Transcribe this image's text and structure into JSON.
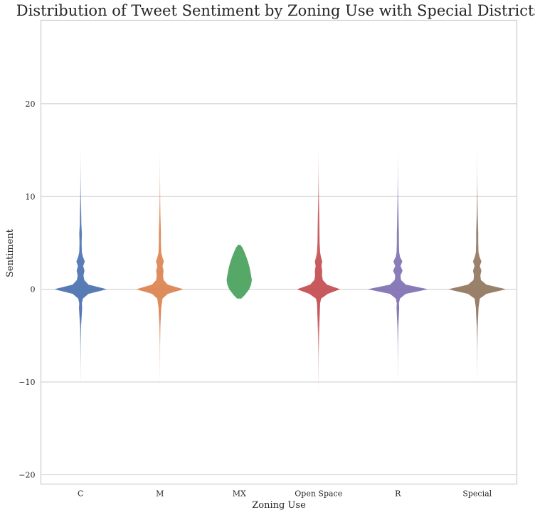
{
  "chart_data": {
    "type": "violin",
    "title": "Distribution of Tweet Sentiment by Zoning Use with Special Districts",
    "xlabel": "Zoning Use",
    "ylabel": "Sentiment",
    "categories": [
      "C",
      "M",
      "MX",
      "Open Space",
      "R",
      "Special"
    ],
    "ylim": [
      -21,
      29
    ],
    "yticks": [
      -20,
      -10,
      0,
      10,
      20
    ],
    "grid": "horizontal",
    "colors": [
      "#4c72b0",
      "#dd8452",
      "#55a868",
      "#c44e52",
      "#8172b3",
      "#937860"
    ],
    "series": [
      {
        "category": "C",
        "y": [
          -10,
          -6,
          -4,
          -3,
          -2,
          -1.5,
          -1,
          -0.5,
          0,
          0.5,
          1,
          1.5,
          2,
          2.5,
          3,
          3.5,
          4,
          5,
          6,
          7,
          8,
          10,
          12,
          15
        ],
        "width": [
          0.005,
          0.01,
          0.02,
          0.04,
          0.06,
          0.05,
          0.09,
          0.3,
          1.0,
          0.3,
          0.14,
          0.11,
          0.15,
          0.1,
          0.16,
          0.09,
          0.05,
          0.04,
          0.05,
          0.03,
          0.025,
          0.015,
          0.008,
          0.004
        ]
      },
      {
        "category": "M",
        "y": [
          -10,
          -6,
          -4,
          -2,
          -1,
          -0.5,
          0,
          0.5,
          1,
          1.5,
          2,
          2.5,
          3,
          3.5,
          4,
          5,
          6,
          7,
          8,
          10,
          12,
          15
        ],
        "width": [
          0.004,
          0.01,
          0.02,
          0.05,
          0.1,
          0.3,
          0.9,
          0.3,
          0.14,
          0.12,
          0.14,
          0.1,
          0.15,
          0.09,
          0.05,
          0.04,
          0.04,
          0.03,
          0.02,
          0.012,
          0.007,
          0.004
        ]
      },
      {
        "category": "MX",
        "y": [
          -1,
          -0.6,
          0,
          0.5,
          1,
          1.5,
          2,
          2.5,
          3,
          3.5,
          4,
          4.5,
          4.8
        ],
        "width": [
          0.08,
          0.22,
          0.38,
          0.45,
          0.48,
          0.45,
          0.42,
          0.38,
          0.33,
          0.27,
          0.2,
          0.12,
          0.04
        ]
      },
      {
        "category": "Open Space",
        "y": [
          -11,
          -7,
          -5,
          -3,
          -1.5,
          -1,
          -0.5,
          0,
          0.5,
          1,
          1.5,
          2,
          2.5,
          3,
          3.5,
          4,
          5,
          6,
          7,
          8,
          10,
          12,
          15
        ],
        "width": [
          0.004,
          0.01,
          0.02,
          0.04,
          0.06,
          0.1,
          0.35,
          0.82,
          0.32,
          0.16,
          0.13,
          0.14,
          0.11,
          0.14,
          0.09,
          0.06,
          0.04,
          0.035,
          0.03,
          0.025,
          0.015,
          0.008,
          0.004
        ]
      },
      {
        "category": "R",
        "y": [
          -10,
          -6,
          -4,
          -2,
          -1.5,
          -1,
          -0.5,
          0,
          0.5,
          1,
          1.5,
          2,
          2.5,
          3,
          3.5,
          4,
          5,
          6,
          7,
          8,
          9,
          10,
          12,
          15
        ],
        "width": [
          0.004,
          0.01,
          0.02,
          0.05,
          0.04,
          0.08,
          0.3,
          1.15,
          0.3,
          0.12,
          0.1,
          0.18,
          0.1,
          0.17,
          0.08,
          0.05,
          0.04,
          0.04,
          0.03,
          0.025,
          0.02,
          0.015,
          0.008,
          0.004
        ]
      },
      {
        "category": "Special",
        "y": [
          -10,
          -6,
          -4,
          -2,
          -1,
          -0.5,
          0,
          0.5,
          1,
          1.5,
          2,
          2.5,
          3,
          3.5,
          4,
          5,
          6,
          7,
          8,
          10,
          12,
          15
        ],
        "width": [
          0.004,
          0.01,
          0.02,
          0.05,
          0.1,
          0.35,
          1.1,
          0.35,
          0.14,
          0.12,
          0.16,
          0.1,
          0.16,
          0.09,
          0.05,
          0.04,
          0.04,
          0.03,
          0.02,
          0.012,
          0.007,
          0.004
        ]
      }
    ]
  }
}
